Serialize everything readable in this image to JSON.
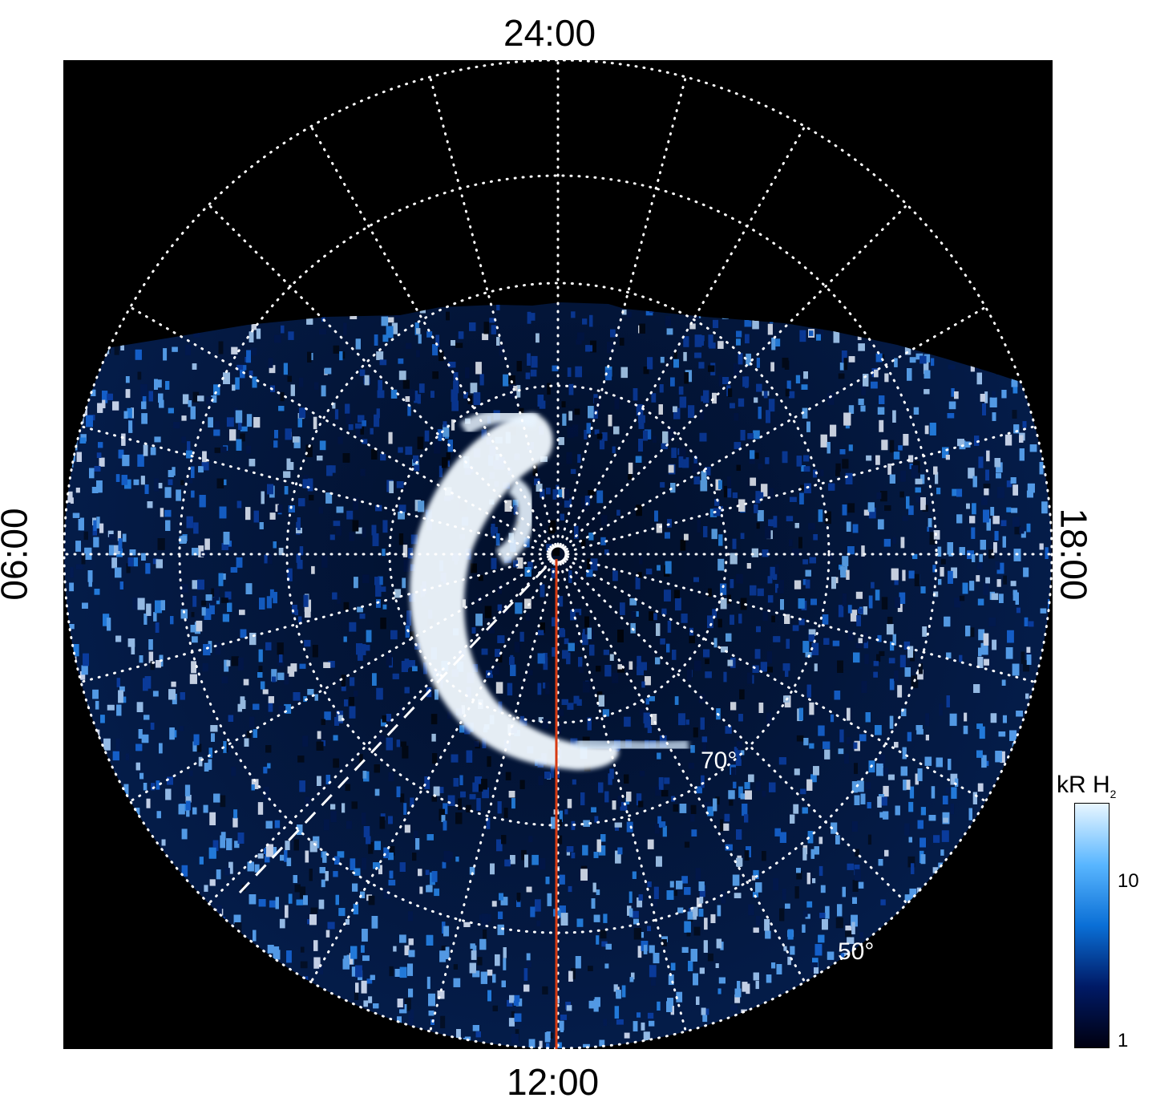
{
  "local_time_labels": {
    "top": "24:00",
    "bottom": "12:00",
    "left": "06:00",
    "right": "18:00"
  },
  "latitude_labels": {
    "inner": "70°",
    "outer": "50°"
  },
  "colorbar": {
    "title": "kR H",
    "title_subscript": "2",
    "ticks": [
      "1",
      "10"
    ],
    "scale": "log",
    "colors": [
      "#000010",
      "#001a66",
      "#0a6fd6",
      "#59b6ff",
      "#e8f6ff"
    ]
  },
  "colors": {
    "background": "#000000",
    "grid": "#ffffff",
    "meridian": "#d63a12",
    "aurora": "#f5fbff"
  }
}
